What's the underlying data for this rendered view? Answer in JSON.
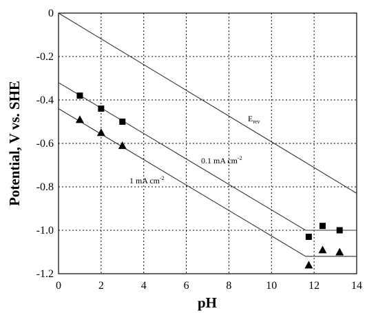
{
  "chart_data": {
    "type": "scatter",
    "xlabel": "pH",
    "ylabel": "Potential, V vs. SHE",
    "xlim": [
      0,
      14
    ],
    "ylim": [
      -1.2,
      0
    ],
    "x_ticks": [
      "0",
      "2",
      "4",
      "6",
      "8",
      "10",
      "12",
      "14"
    ],
    "y_ticks": [
      "0",
      "-0.2",
      "-0.4",
      "-0.6",
      "-0.8",
      "-1.0",
      "-1.2"
    ],
    "grid": true,
    "lines": [
      {
        "name": "E",
        "subscript": "rev",
        "points": [
          [
            0,
            0
          ],
          [
            14,
            -0.83
          ]
        ]
      },
      {
        "name": "0.1 mA cm",
        "superscript": "-2",
        "points": [
          [
            0,
            -0.32
          ],
          [
            11.6,
            -1.0
          ],
          [
            14,
            -1.0
          ]
        ]
      },
      {
        "name": "1 mA cm",
        "superscript": "-2",
        "points": [
          [
            0,
            -0.44
          ],
          [
            11.6,
            -1.12
          ],
          [
            14,
            -1.12
          ]
        ]
      }
    ],
    "series": [
      {
        "marker": "square",
        "x": [
          1,
          2,
          3,
          11.75,
          12.4,
          13.2
        ],
        "y": [
          -0.38,
          -0.44,
          -0.5,
          -1.03,
          -0.98,
          -1.0
        ]
      },
      {
        "marker": "triangle",
        "x": [
          1,
          2,
          3,
          11.75,
          12.4,
          13.2
        ],
        "y": [
          -0.49,
          -0.55,
          -0.61,
          -1.16,
          -1.09,
          -1.1
        ]
      }
    ]
  }
}
